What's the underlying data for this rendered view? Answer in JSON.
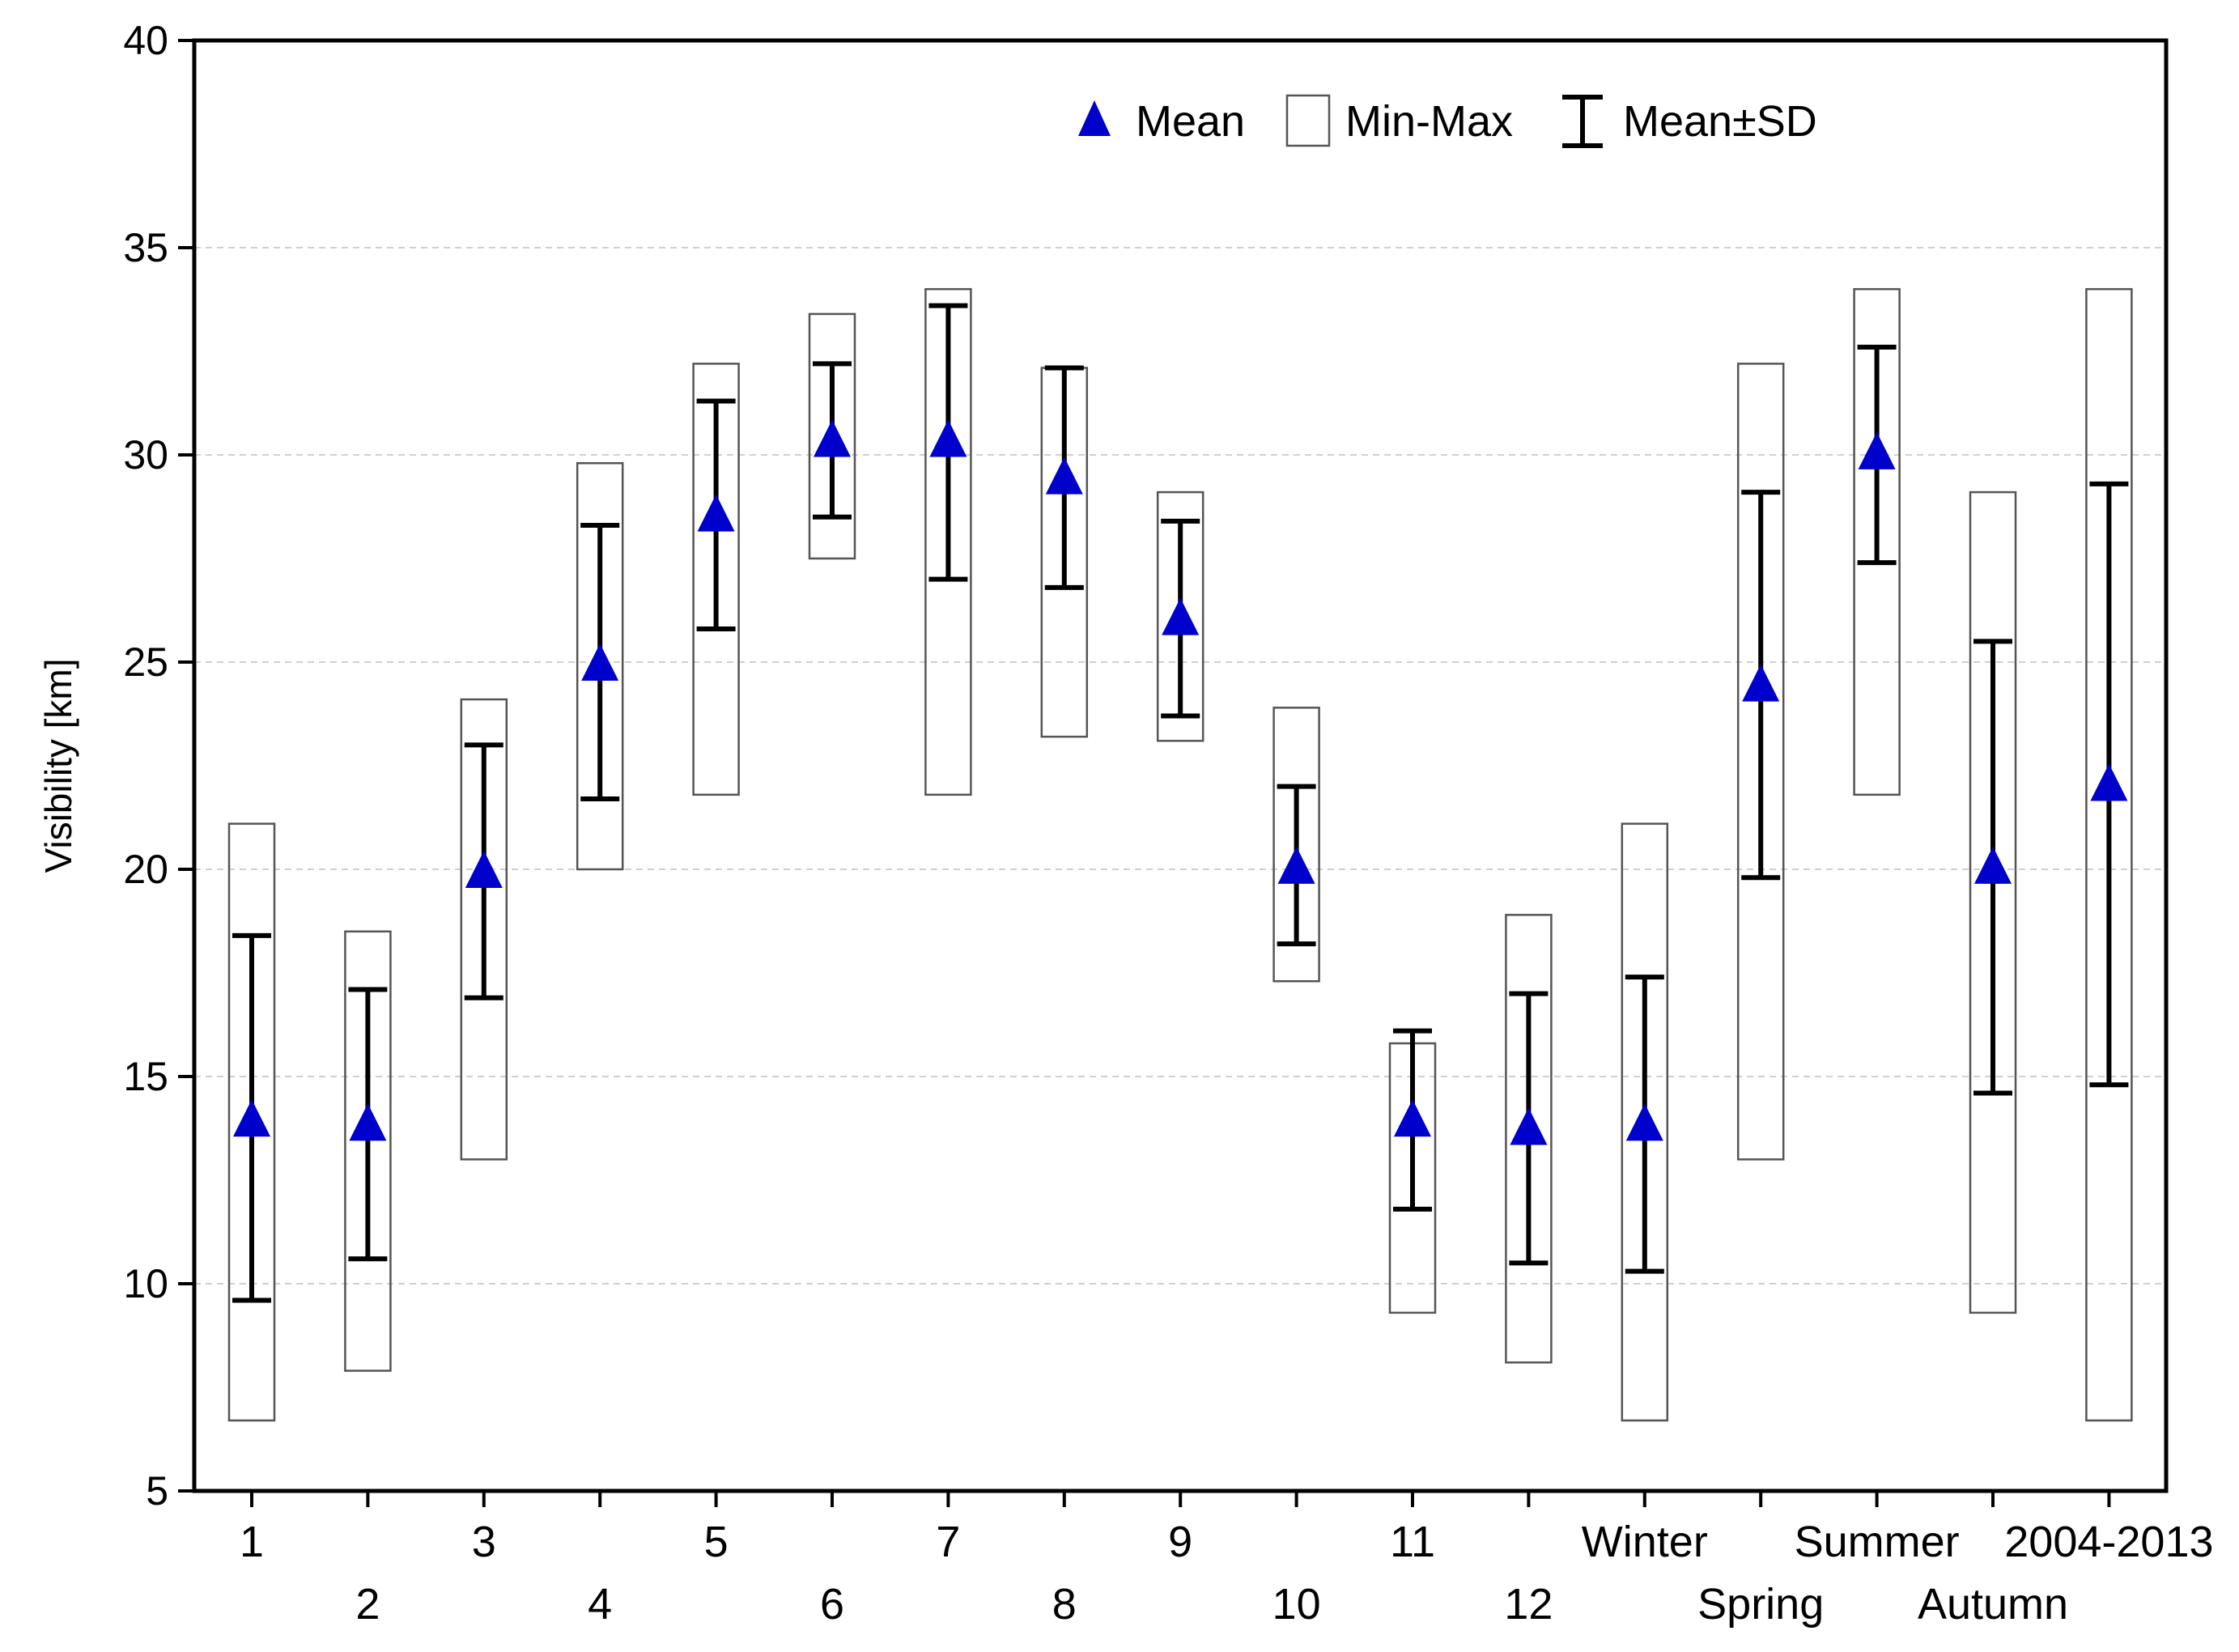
{
  "chart_data": {
    "type": "box",
    "title": "",
    "xlabel": "",
    "ylabel": "Visibility [km]",
    "ylim": [
      5,
      40
    ],
    "yticks": [
      5,
      10,
      15,
      20,
      25,
      30,
      35,
      40
    ],
    "grid": "horizontal dashed",
    "legend": {
      "placement": "top-center",
      "entries": [
        "Mean",
        "Min-Max",
        "Mean±SD"
      ]
    },
    "colors": {
      "mean": "#0000cc",
      "whisker": "#000000",
      "box": "#555555",
      "grid": "#d0d0d0"
    },
    "categories": [
      "1",
      "2",
      "3",
      "4",
      "5",
      "6",
      "7",
      "8",
      "9",
      "10",
      "11",
      "12",
      "Winter",
      "Spring",
      "Summer",
      "Autumn",
      "2004-2013"
    ],
    "mean": [
      14.0,
      13.9,
      20.0,
      25.0,
      28.6,
      30.4,
      30.4,
      29.5,
      26.1,
      20.1,
      14.0,
      13.8,
      13.9,
      24.5,
      30.1,
      20.1,
      22.1
    ],
    "sd_low": [
      9.6,
      10.6,
      16.9,
      21.7,
      25.8,
      28.5,
      27.0,
      26.8,
      23.7,
      18.2,
      11.8,
      10.5,
      10.3,
      19.8,
      27.4,
      14.6,
      14.8
    ],
    "sd_high": [
      18.4,
      17.1,
      23.0,
      28.3,
      31.3,
      32.2,
      33.6,
      32.1,
      28.4,
      22.0,
      16.1,
      17.0,
      17.4,
      29.1,
      32.6,
      25.5,
      29.3
    ],
    "min": [
      6.7,
      7.9,
      13.0,
      20.0,
      21.8,
      27.5,
      21.8,
      23.2,
      23.1,
      17.3,
      9.3,
      8.1,
      6.7,
      13.0,
      21.8,
      9.3,
      6.7
    ],
    "max": [
      21.1,
      18.5,
      24.1,
      29.8,
      32.2,
      33.4,
      34.0,
      32.1,
      29.1,
      23.9,
      15.8,
      18.9,
      21.1,
      32.2,
      34.0,
      29.1,
      34.0
    ]
  }
}
